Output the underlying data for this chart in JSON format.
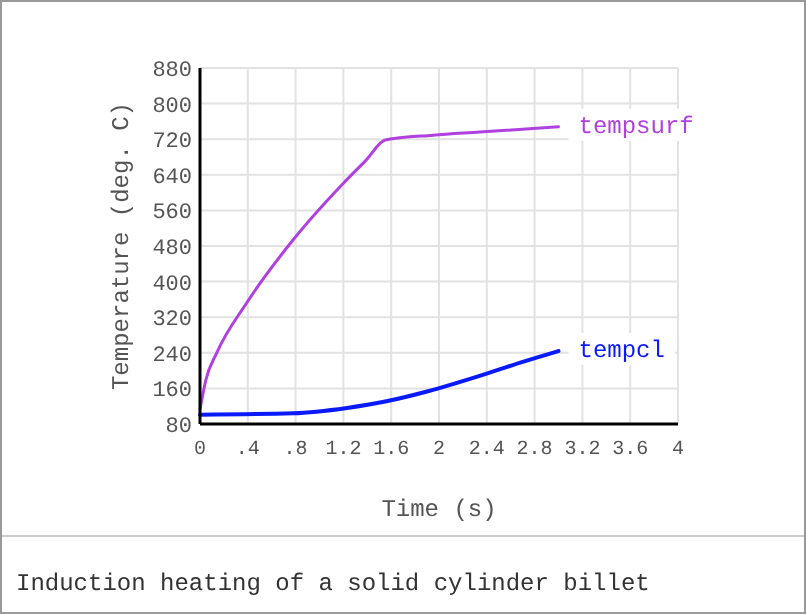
{
  "chart_data": {
    "type": "line",
    "xlabel": "Time (s)",
    "ylabel": "Temperature (deg. C)",
    "xlim": [
      0,
      4
    ],
    "xticks": [
      0,
      {
        "value": 0.4,
        "label": ".4"
      },
      {
        "value": 0.8,
        "label": ".8"
      },
      1.2,
      1.6,
      2,
      2.4,
      2.8,
      3.2,
      3.6,
      4
    ],
    "ylim": [
      80,
      880
    ],
    "yticks": [
      80,
      160,
      240,
      320,
      400,
      480,
      560,
      640,
      720,
      800,
      880
    ],
    "grid": true,
    "line_style": "solid",
    "marker": "none",
    "series": [
      {
        "name": "tempsurf",
        "color": "#b040e0",
        "x": [
          0,
          0.05,
          0.14,
          0.39,
          0.78,
          1.2,
          1.39,
          1.55,
          1.95,
          2.34,
          3.0
        ],
        "values": [
          113,
          180,
          240,
          352,
          494,
          621,
          673,
          718,
          729,
          736,
          748
        ]
      },
      {
        "name": "tempcl",
        "color": "#0a1aff",
        "x": [
          0,
          0.78,
          1.23,
          1.56,
          1.9,
          2.34,
          2.68,
          3.0
        ],
        "values": [
          101,
          104,
          116,
          131,
          153,
          188,
          218,
          244
        ]
      }
    ],
    "annotations": [
      "Induction heating of a solid cylinder billet"
    ]
  }
}
